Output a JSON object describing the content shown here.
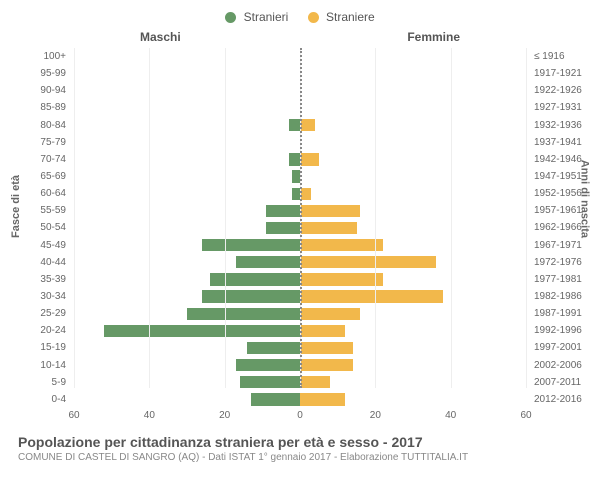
{
  "legend": {
    "male_label": "Stranieri",
    "female_label": "Straniere"
  },
  "col_headers": {
    "left": "Maschi",
    "right": "Femmine"
  },
  "ylabel_left": "Fasce di età",
  "ylabel_right": "Anni di nascita",
  "title": "Popolazione per cittadinanza straniera per età e sesso - 2017",
  "subtitle": "COMUNE DI CASTEL DI SANGRO (AQ) - Dati ISTAT 1° gennaio 2017 - Elaborazione TUTTITALIA.IT",
  "chart": {
    "type": "population-pyramid",
    "xmax": 60,
    "xticks": [
      60,
      40,
      20,
      0,
      20,
      40,
      60
    ],
    "male_color": "#669966",
    "female_color": "#f2b84b",
    "grid_color": "#eeeeee",
    "center_line_color": "#888888",
    "background_color": "#ffffff",
    "text_color": "#666666",
    "label_fontsize": 10,
    "age_bands": [
      "100+",
      "95-99",
      "90-94",
      "85-89",
      "80-84",
      "75-79",
      "70-74",
      "65-69",
      "60-64",
      "55-59",
      "50-54",
      "45-49",
      "40-44",
      "35-39",
      "30-34",
      "25-29",
      "20-24",
      "15-19",
      "10-14",
      "5-9",
      "0-4"
    ],
    "birth_bands": [
      "≤ 1916",
      "1917-1921",
      "1922-1926",
      "1927-1931",
      "1932-1936",
      "1937-1941",
      "1942-1946",
      "1947-1951",
      "1952-1956",
      "1957-1961",
      "1962-1966",
      "1967-1971",
      "1972-1976",
      "1977-1981",
      "1982-1986",
      "1987-1991",
      "1992-1996",
      "1997-2001",
      "2002-2006",
      "2007-2011",
      "2012-2016"
    ],
    "male_values": [
      0,
      0,
      0,
      0,
      3,
      0,
      3,
      2,
      2,
      9,
      9,
      26,
      17,
      24,
      26,
      30,
      52,
      14,
      17,
      16,
      13
    ],
    "female_values": [
      0,
      0,
      0,
      0,
      4,
      0,
      5,
      0,
      3,
      16,
      15,
      22,
      36,
      22,
      38,
      16,
      12,
      14,
      14,
      8,
      12
    ]
  }
}
